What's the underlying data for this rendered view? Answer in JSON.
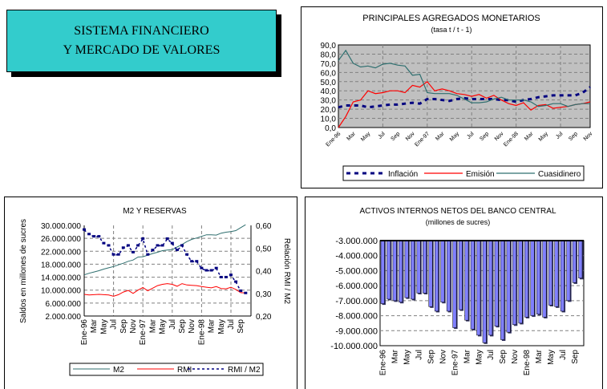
{
  "title_box": {
    "line1": "SISTEMA FINANCIERO",
    "line2": "Y MERCADO DE VALORES"
  },
  "chart_data": [
    {
      "type": "line",
      "title": "PRINCIPALES AGREGADOS MONETARIOS",
      "subtitle": "(tasa t / t - 1)",
      "ylim": [
        0,
        90
      ],
      "yticks": [
        "0,0",
        "10,0",
        "20,0",
        "30,0",
        "40,0",
        "50,0",
        "60,0",
        "70,0",
        "80,0",
        "90,0"
      ],
      "xticks": [
        "Ene-96",
        "Mar",
        "May",
        "Jul",
        "Sep",
        "Nov",
        "Ene-97",
        "Mar",
        "May",
        "Jul",
        "Sep",
        "Nov",
        "Ene-98",
        "Mar",
        "May",
        "Jul",
        "Sep",
        "Nov"
      ],
      "grid": true,
      "legend": "bottom",
      "series": [
        {
          "name": "Inflación",
          "color": "#000080",
          "style": "dashed",
          "values": [
            22,
            24,
            24,
            24,
            22,
            23,
            24,
            25,
            25,
            26,
            27,
            26,
            31,
            31,
            30,
            29,
            31,
            32,
            31,
            31,
            31,
            31,
            30,
            30,
            28,
            30,
            31,
            33,
            34,
            35,
            35,
            35,
            35,
            38,
            44
          ]
        },
        {
          "name": "Emisión",
          "color": "#ff0000",
          "style": "solid",
          "values": [
            0,
            12,
            28,
            30,
            40,
            37,
            38,
            40,
            40,
            38,
            46,
            44,
            50,
            40,
            42,
            40,
            37,
            36,
            34,
            36,
            32,
            35,
            30,
            26,
            24,
            27,
            19,
            24,
            25,
            21,
            22,
            23,
            25,
            26,
            28
          ]
        },
        {
          "name": "Cuasidinero",
          "color": "#2f6f6f",
          "style": "solid",
          "values": [
            73,
            84,
            70,
            66,
            67,
            65,
            69,
            70,
            68,
            67,
            57,
            58,
            38,
            37,
            37,
            37,
            35,
            31,
            27,
            27,
            28,
            31,
            33,
            30,
            30,
            30,
            28,
            23,
            24,
            26,
            26,
            23,
            25,
            26,
            26
          ]
        }
      ]
    },
    {
      "type": "line",
      "title": "M2 Y RESERVAS",
      "ylabel": "Saldos en millones de sucres",
      "y2label": "Relación  RMI / M2",
      "ylim": [
        2000000,
        30000000
      ],
      "y2lim": [
        0.2,
        0.6
      ],
      "yticks": [
        "2.000.000",
        "6.000.000",
        "10.000.000",
        "14.000.000",
        "18.000.000",
        "22.000.000",
        "26.000.000",
        "30.000.000"
      ],
      "y2ticks": [
        "0,20",
        "0,30",
        "0,40",
        "0,50",
        "0,60"
      ],
      "xticks": [
        "Ene-96",
        "Mar",
        "May",
        "Jul",
        "Sep",
        "Nov",
        "Ene-97",
        "Mar",
        "May",
        "Jul",
        "Sep",
        "Nov",
        "Ene-98",
        "Mar",
        "May",
        "Jul",
        "Sep"
      ],
      "grid": true,
      "legend": "bottom",
      "series": [
        {
          "name": "M2",
          "color": "#2f6f6f",
          "style": "solid",
          "axis": "left",
          "values": [
            14700000,
            15200000,
            15600000,
            16000000,
            16500000,
            16900000,
            17300000,
            17800000,
            18300000,
            18900000,
            19300000,
            20200000,
            20300000,
            20800000,
            21300000,
            21700000,
            22200000,
            22400000,
            22500000,
            23300000,
            24100000,
            25000000,
            25700000,
            26100000,
            26600000,
            27100000,
            27100000,
            27000000,
            27600000,
            27900000,
            28100000,
            28400000,
            29300000,
            30200000
          ]
        },
        {
          "name": "RMI",
          "color": "#ff0000",
          "style": "solid",
          "axis": "left",
          "values": [
            8700000,
            8500000,
            8600000,
            8700000,
            8600000,
            8500000,
            8100000,
            8600000,
            9400000,
            9900000,
            9000000,
            10000000,
            10800000,
            9800000,
            10600000,
            11400000,
            11800000,
            12000000,
            11800000,
            11200000,
            12000000,
            11600000,
            11500000,
            11400000,
            11100000,
            10900000,
            10700000,
            11100000,
            10500000,
            10400000,
            10900000,
            10200000,
            9200000,
            9100000
          ]
        },
        {
          "name": "RMI / M2",
          "color": "#000080",
          "style": "dashed-marker",
          "axis": "right",
          "values": [
            0.58,
            0.56,
            0.55,
            0.55,
            0.52,
            0.51,
            0.47,
            0.47,
            0.5,
            0.51,
            0.48,
            0.51,
            0.54,
            0.47,
            0.49,
            0.51,
            0.51,
            0.54,
            0.52,
            0.49,
            0.51,
            0.47,
            0.44,
            0.44,
            0.41,
            0.4,
            0.4,
            0.41,
            0.37,
            0.37,
            0.38,
            0.35,
            0.31,
            0.3
          ]
        }
      ]
    },
    {
      "type": "bar",
      "title": "ACTIVOS INTERNOS NETOS DEL BANCO CENTRAL",
      "subtitle": "(millones de sucres)",
      "ylim": [
        -10000000,
        -3000000
      ],
      "yticks": [
        "-10.000.000",
        "-9.000.000",
        "-8.000.000",
        "-7.000.000",
        "-6.000.000",
        "-5.000.000",
        "-4.000.000",
        "-3.000.000"
      ],
      "xticks": [
        "Ene-96",
        "Mar",
        "May",
        "Jul",
        "Sep",
        "Nov",
        "Ene-97",
        "Mar",
        "May",
        "Jul",
        "Sep",
        "Nov",
        "Ene-98",
        "Mar",
        "May",
        "Jul",
        "Sep"
      ],
      "grid": true,
      "color": "#8080ff",
      "values": [
        -7200000,
        -6900000,
        -7000000,
        -7100000,
        -6800000,
        -6900000,
        -6500000,
        -6500000,
        -7400000,
        -7700000,
        -7100000,
        -7700000,
        -8800000,
        -7600000,
        -8300000,
        -8900000,
        -9300000,
        -9800000,
        -9300000,
        -8700000,
        -9600000,
        -9100000,
        -8600000,
        -8500000,
        -8100000,
        -8000000,
        -7900000,
        -8100000,
        -7300000,
        -7400000,
        -7700000,
        -7000000,
        -5800000,
        -5500000
      ]
    }
  ]
}
